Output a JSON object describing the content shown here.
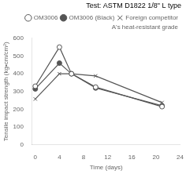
{
  "chart_data": {
    "type": "line",
    "title": "Test: ASTM D1822 1/8\" L type",
    "x_label": "Time (days)",
    "y_label": "Tensile impact strength (kg•cm/cm²)",
    "x": [
      0,
      4,
      6,
      10,
      21
    ],
    "series": [
      {
        "name": "OM3006",
        "color": "#555555",
        "values": [
          330,
          550,
          400,
          325,
          215
        ],
        "marker": "open_circle",
        "line_style": "solid"
      },
      {
        "name": "OM3006 (Black)",
        "color": "#555555",
        "values": [
          315,
          460,
          400,
          320,
          220
        ],
        "marker": "circle",
        "line_style": "solid"
      },
      {
        "name": "Foreign competitor\nA's heat-resistant grade",
        "color": "#555555",
        "values": [
          258,
          400,
          400,
          388,
          238
        ],
        "marker": "x",
        "line_style": "solid"
      }
    ],
    "xlim": [
      -0.5,
      24
    ],
    "ylim": [
      0,
      600
    ],
    "xticks": [
      0,
      4,
      8,
      12,
      16,
      20,
      24
    ],
    "yticks": [
      0,
      100,
      200,
      300,
      400,
      500,
      600
    ],
    "grid": false,
    "legend": "upper right"
  }
}
